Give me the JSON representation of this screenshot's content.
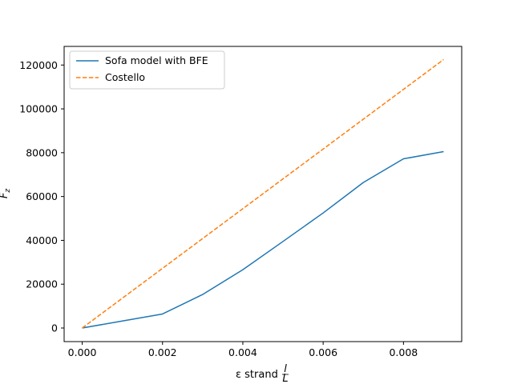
{
  "chart_data": {
    "type": "line",
    "title": "",
    "xlabel_prefix": "ε strand",
    "xlabel_frac_num": "l",
    "xlabel_frac_den": "L",
    "ylabel_main": "F",
    "ylabel_sub": "z",
    "xlim": [
      -0.00045,
      0.00945
    ],
    "ylim": [
      -6200,
      128500
    ],
    "xticks": [
      0.0,
      0.002,
      0.004,
      0.006,
      0.008
    ],
    "xtick_labels": [
      "0.000",
      "0.002",
      "0.004",
      "0.006",
      "0.008"
    ],
    "yticks": [
      0,
      20000,
      40000,
      60000,
      80000,
      100000,
      120000
    ],
    "ytick_labels": [
      "0",
      "20000",
      "40000",
      "60000",
      "80000",
      "100000",
      "120000"
    ],
    "grid": false,
    "legend_position": "upper-left",
    "series": [
      {
        "name": "Sofa model with BFE",
        "style": "solid",
        "color": "#1f77b4",
        "x": [
          0.0,
          0.001,
          0.002,
          0.003,
          0.004,
          0.005,
          0.006,
          0.007,
          0.008,
          0.009
        ],
        "y": [
          0,
          3200,
          6400,
          15300,
          26600,
          39500,
          52500,
          66400,
          77200,
          80500
        ]
      },
      {
        "name": "Costello",
        "style": "dashed",
        "color": "#ff7f0e",
        "x": [
          0.0,
          0.009
        ],
        "y": [
          0,
          122500
        ]
      }
    ]
  }
}
